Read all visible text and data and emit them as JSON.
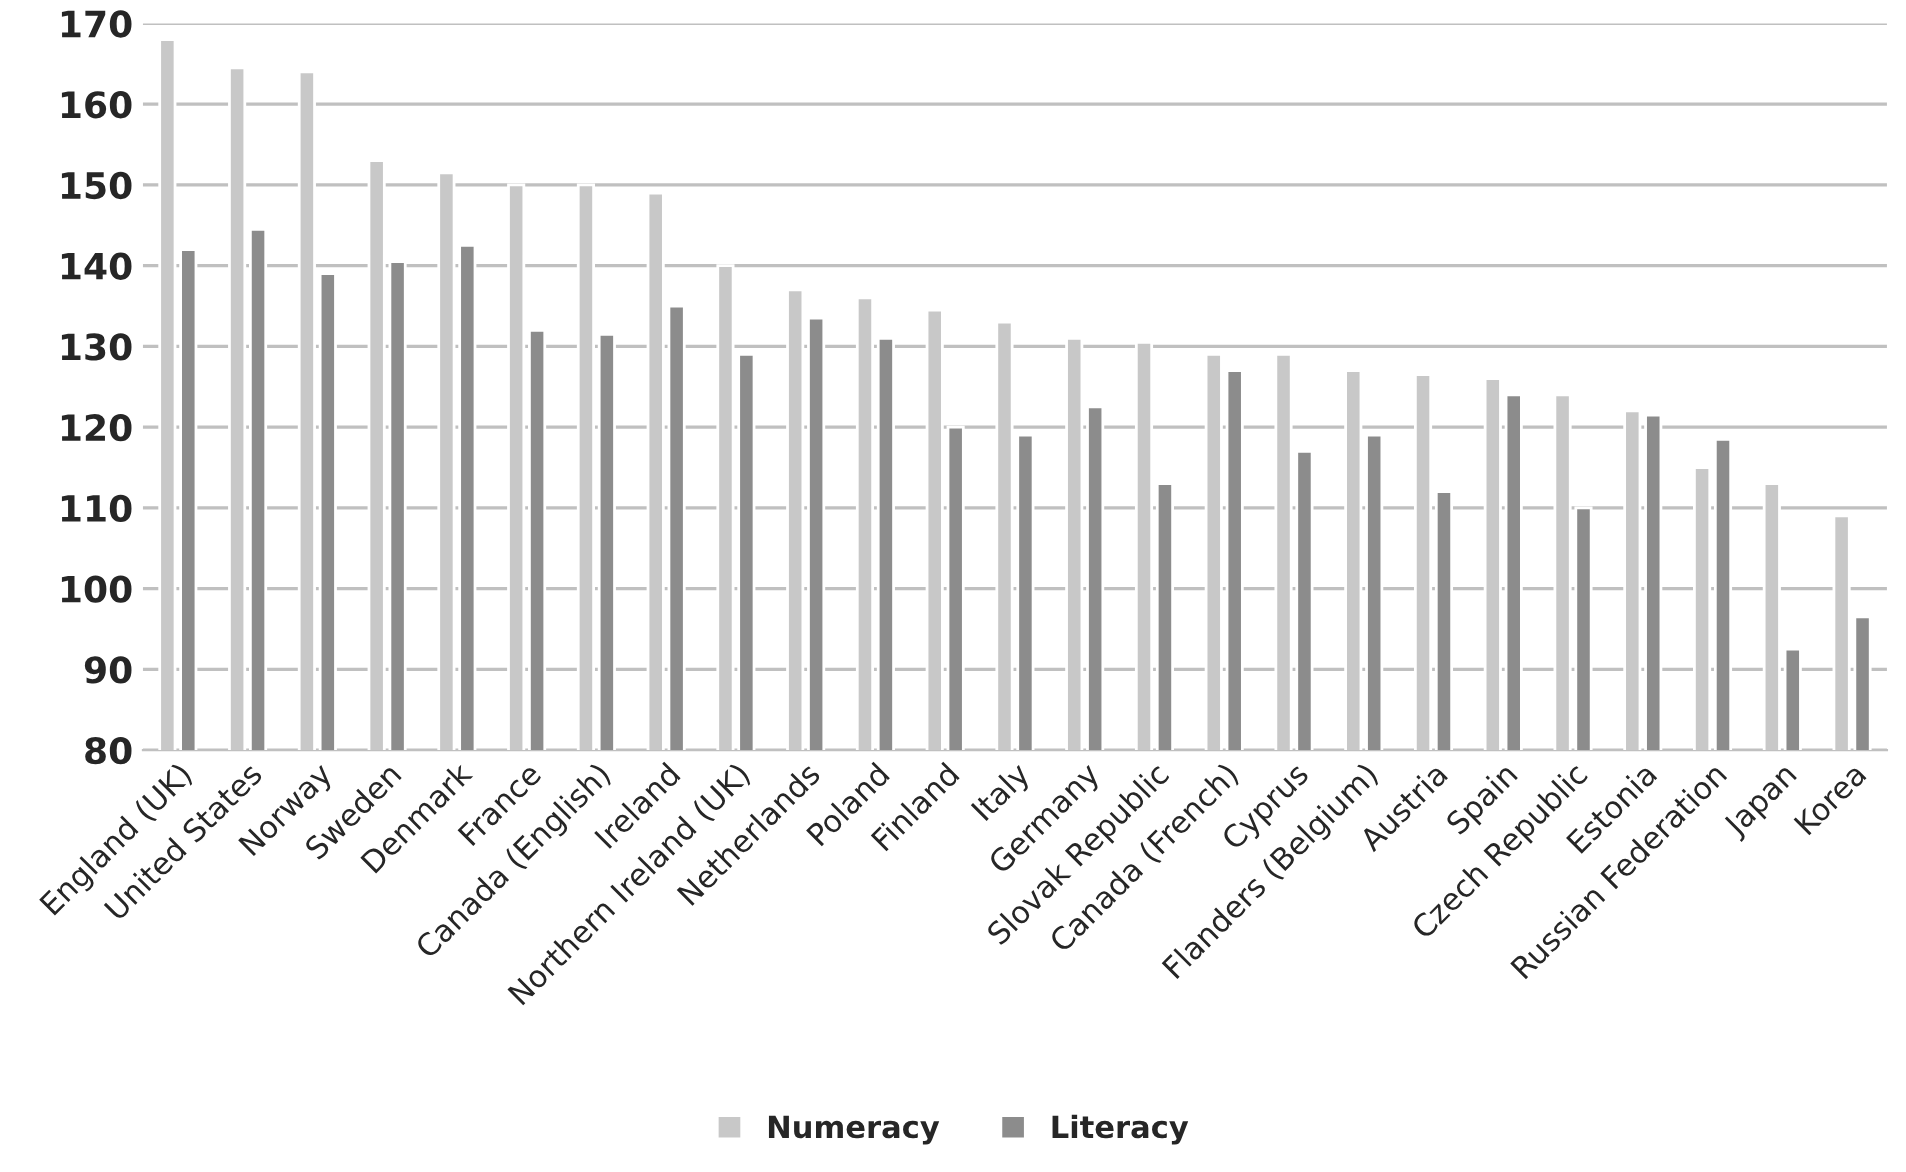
{
  "chart_data": {
    "type": "bar",
    "categories": [
      "England (UK)",
      "United States",
      "Norway",
      "Sweden",
      "Denmark",
      "France",
      "Canada (English)",
      "Ireland",
      "Northern Ireland (UK)",
      "Netherlands",
      "Poland",
      "Finland",
      "Italy",
      "Germany",
      "Slovak Republic",
      "Canada (French)",
      "Cyprus",
      "Flanders (Belgium)",
      "Austria",
      "Spain",
      "Czech Republic",
      "Estonia",
      "Russian Federation",
      "Japan",
      "Korea"
    ],
    "series": [
      {
        "name": "Numeracy",
        "color": "#c8c8c8",
        "values": [
          168,
          164.5,
          164,
          153,
          151.5,
          150,
          150,
          149,
          140,
          137,
          136,
          134.5,
          133,
          131,
          130.5,
          129,
          129,
          127,
          126.5,
          126,
          124,
          122,
          115,
          113,
          109
        ]
      },
      {
        "name": "Literacy",
        "color": "#8c8c8c",
        "values": [
          142,
          144.5,
          139,
          140.5,
          142.5,
          132,
          131.5,
          135,
          129,
          133.5,
          131,
          120,
          119,
          122.5,
          113,
          127,
          117,
          119,
          112,
          124,
          110,
          121.5,
          118.5,
          92.5,
          96.5
        ]
      }
    ],
    "ylim": [
      80,
      170
    ],
    "yticks": [
      80,
      90,
      100,
      110,
      120,
      130,
      140,
      150,
      160,
      170
    ],
    "grid": "y",
    "legend": "bottom"
  }
}
